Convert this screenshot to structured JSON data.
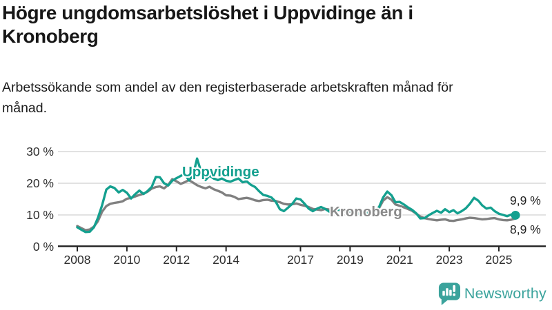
{
  "header": {
    "title": "Högre ungdomsarbetslöshet i Uppvidinge än i Kronoberg",
    "subtitle": "Arbetssökande som andel av den registerbaserade arbetskraften månad för månad."
  },
  "chart_data": {
    "type": "line",
    "title": "Högre ungdomsarbetslöshet i Uppvidinge än i Kronoberg",
    "subtitle": "Arbetssökande som andel av den registerbaserade arbetskraften månad för månad.",
    "xlabel": "",
    "ylabel": "",
    "ylim": [
      0,
      30
    ],
    "yticks": [
      0,
      10,
      20,
      30
    ],
    "ytick_suffix": " %",
    "xticks": [
      2008,
      2010,
      2012,
      2014,
      2017,
      2019,
      2021,
      2023,
      2025
    ],
    "grid": "horizontal",
    "legend": "inline-labels",
    "x": [
      2008,
      2008.17,
      2008.33,
      2008.5,
      2008.67,
      2008.83,
      2009,
      2009.17,
      2009.33,
      2009.5,
      2009.67,
      2009.83,
      2010,
      2010.17,
      2010.33,
      2010.5,
      2010.67,
      2010.83,
      2011,
      2011.17,
      2011.33,
      2011.5,
      2011.67,
      2011.83,
      2012,
      2012.17,
      2012.33,
      2012.5,
      2012.67,
      2012.83,
      2013,
      2013.17,
      2013.33,
      2013.5,
      2013.67,
      2013.83,
      2014,
      2014.17,
      2014.33,
      2014.5,
      2014.67,
      2014.83,
      2015,
      2015.17,
      2015.33,
      2015.5,
      2015.67,
      2015.83,
      2016,
      2016.17,
      2016.33,
      2016.5,
      2016.67,
      2016.83,
      2017,
      2017.17,
      2017.33,
      2017.5,
      2017.67,
      2017.83,
      2018,
      2018.17,
      2018.33,
      2018.5,
      2018.67,
      2018.83,
      2019,
      2019.17,
      2019.33,
      2019.5,
      2019.67,
      2019.83,
      2020,
      2020.17,
      2020.33,
      2020.5,
      2020.67,
      2020.83,
      2021,
      2021.17,
      2021.33,
      2021.5,
      2021.67,
      2021.83,
      2022,
      2022.17,
      2022.33,
      2022.5,
      2022.67,
      2022.83,
      2023,
      2023.17,
      2023.33,
      2023.5,
      2023.67,
      2023.83,
      2024,
      2024.17,
      2024.33,
      2024.5,
      2024.67,
      2024.83,
      2025,
      2025.17,
      2025.33,
      2025.5,
      2025.67
    ],
    "series": [
      {
        "name": "Uppvidinge",
        "color": "#14a08f",
        "end_label": "9,9 %",
        "end_value": 9.9,
        "end_dot": true,
        "values": [
          6.1,
          5.3,
          4.6,
          4.7,
          6.1,
          9.0,
          13.0,
          18.0,
          19.0,
          18.5,
          17.1,
          17.9,
          17.0,
          15.2,
          16.5,
          17.7,
          16.6,
          17.5,
          18.8,
          22.0,
          21.9,
          20.0,
          19.3,
          20.8,
          21.6,
          22.3,
          23.1,
          20.9,
          22.5,
          27.8,
          23.5,
          21.0,
          22.4,
          21.5,
          21.0,
          21.5,
          20.8,
          20.5,
          21.0,
          21.5,
          20.3,
          20.6,
          19.5,
          18.8,
          17.5,
          16.3,
          16.0,
          15.5,
          14.2,
          11.8,
          11.2,
          12.3,
          13.5,
          15.2,
          14.9,
          13.5,
          12.0,
          11.2,
          12.0,
          12.5,
          11.9,
          11.0,
          12.0,
          11.6,
          11.9,
          11.4,
          11.2,
          10.8,
          10.4,
          10.2,
          10.5,
          10.8,
          11.2,
          12.5,
          15.5,
          17.4,
          16.2,
          14.0,
          14.1,
          13.3,
          12.4,
          11.6,
          10.5,
          8.9,
          9.0,
          9.9,
          10.6,
          11.3,
          10.7,
          11.8,
          10.9,
          11.5,
          10.5,
          11.2,
          12.1,
          13.5,
          15.4,
          14.5,
          13.0,
          12.0,
          12.3,
          11.2,
          10.4,
          10.0,
          9.6,
          10.1,
          9.9
        ]
      },
      {
        "name": "Kronoberg",
        "color": "#808080",
        "label_color": "#8a8a8a",
        "end_label": "8,9 %",
        "end_value": 8.9,
        "end_dot": false,
        "values": [
          6.5,
          5.8,
          5.2,
          5.4,
          6.3,
          8.0,
          11.0,
          12.8,
          13.5,
          13.8,
          14.0,
          14.3,
          15.1,
          15.4,
          15.8,
          16.3,
          16.7,
          17.3,
          18.3,
          18.8,
          19.0,
          18.4,
          19.5,
          21.3,
          20.6,
          19.8,
          20.3,
          21.0,
          20.2,
          19.4,
          18.8,
          18.4,
          18.9,
          18.1,
          17.6,
          17.1,
          16.2,
          16.1,
          15.7,
          15.0,
          15.2,
          15.4,
          15.1,
          14.6,
          14.4,
          14.7,
          14.8,
          14.5,
          14.4,
          14.0,
          13.5,
          13.3,
          13.4,
          13.6,
          13.2,
          12.9,
          12.5,
          11.9,
          11.7,
          11.5,
          11.9,
          11.7,
          11.9,
          11.6,
          11.4,
          11.1,
          11.0,
          10.8,
          10.6,
          10.5,
          10.7,
          10.9,
          11.2,
          12.2,
          14.5,
          15.6,
          14.8,
          13.3,
          12.9,
          12.4,
          11.9,
          11.3,
          10.4,
          9.5,
          9.0,
          8.7,
          8.5,
          8.3,
          8.5,
          8.6,
          8.2,
          8.1,
          8.4,
          8.6,
          8.9,
          9.1,
          9.0,
          8.8,
          8.6,
          8.7,
          8.9,
          9.0,
          8.6,
          8.4,
          8.3,
          8.5,
          8.9
        ]
      }
    ]
  },
  "footer": {
    "brand": "Newsworthy",
    "brand_color": "#3ba39c",
    "icon": "newsworthy-chart-bubble-icon"
  }
}
